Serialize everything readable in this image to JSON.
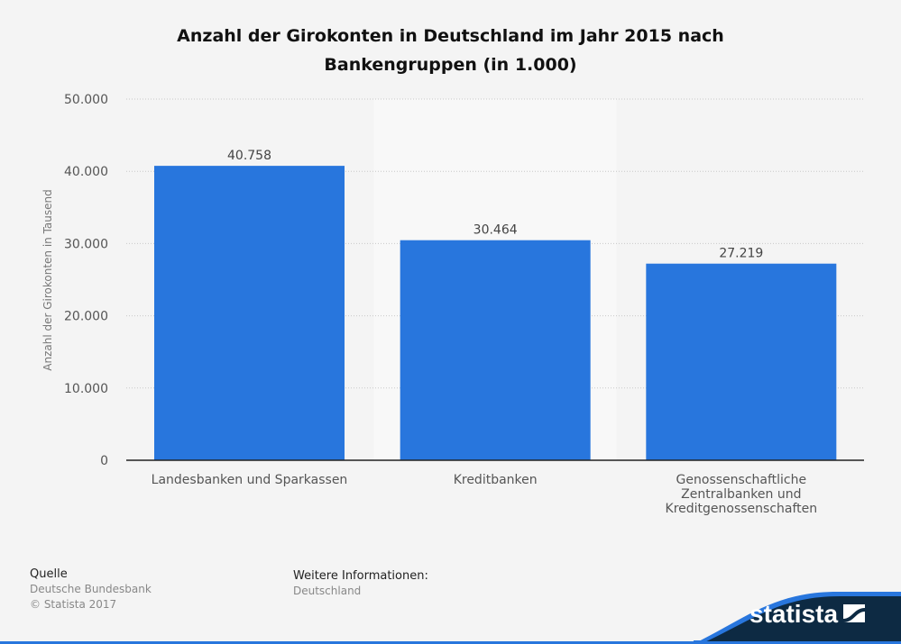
{
  "chart_data": {
    "type": "bar",
    "title": [
      "Anzahl der Girokonten in Deutschland im Jahr 2015 nach",
      "Bankengruppen (in 1.000)"
    ],
    "ylabel": "Anzahl der Girokonten in Tausend",
    "xlabel": "",
    "categories": [
      [
        "Landesbanken und Sparkassen"
      ],
      [
        "Kreditbanken"
      ],
      [
        "Genossenschaftliche",
        "Zentralbanken und",
        "Kreditgenossenschaften"
      ]
    ],
    "values": [
      40758,
      30464,
      27219
    ],
    "data_labels": [
      "40.758",
      "30.464",
      "27.219"
    ],
    "ylim": [
      0,
      50000
    ],
    "yticks": [
      0,
      10000,
      20000,
      30000,
      40000,
      50000
    ],
    "ytick_labels": [
      "0",
      "10.000",
      "20.000",
      "30.000",
      "40.000",
      "50.000"
    ],
    "grid": true,
    "bar_color": "#2876dd",
    "highlight_color": "#f8f8f8"
  },
  "footer": {
    "source_heading": "Quelle",
    "source": "Deutsche Bundesbank",
    "copyright": "© Statista 2017",
    "info_heading": "Weitere Informationen:",
    "info": "Deutschland"
  },
  "logo": {
    "text": "statista",
    "colors": {
      "navy": "#0d2a43",
      "blue": "#2876dd"
    }
  }
}
